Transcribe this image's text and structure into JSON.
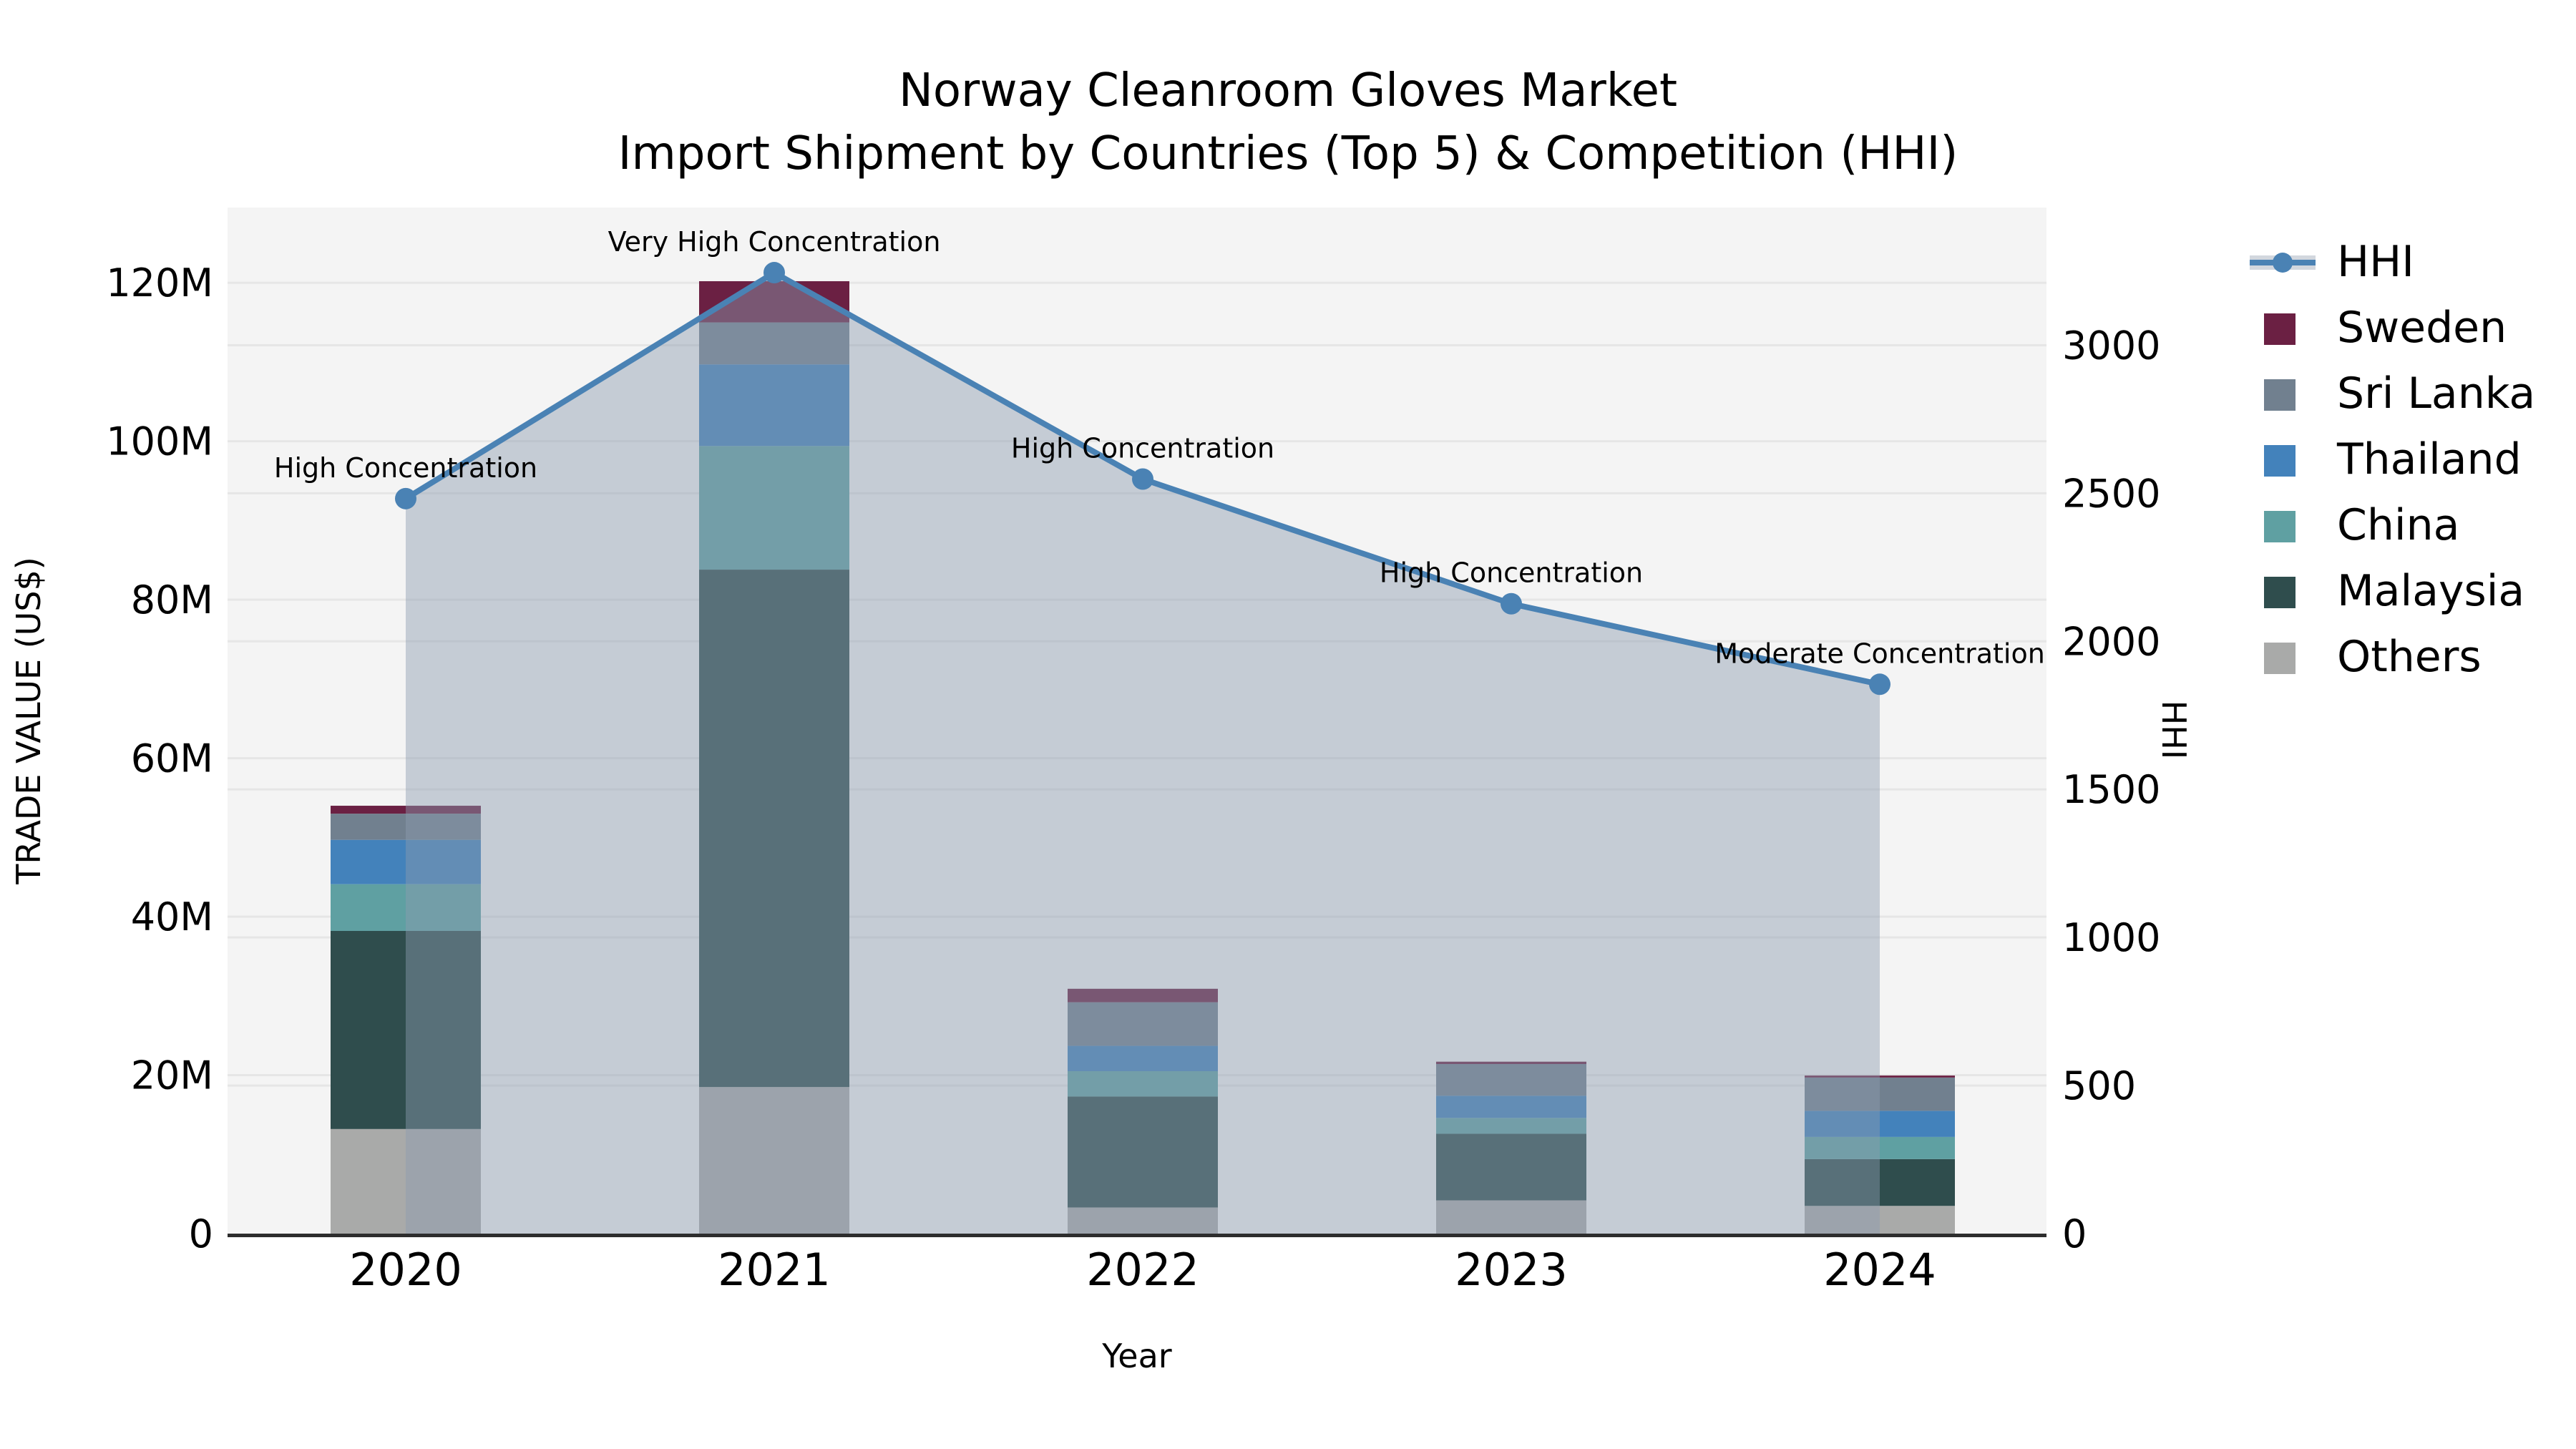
{
  "title": {
    "line1": "Norway Cleanroom Gloves Market",
    "line2": "Import Shipment by Countries (Top 5) & Competition (HHI)"
  },
  "axes": {
    "x_label": "Year",
    "y_left_label": "TRADE VALUE (US$)",
    "y_right_label": "HHI",
    "x_tick_labels": [
      "2020",
      "2021",
      "2022",
      "2023",
      "2024"
    ],
    "y_left_tick_labels": [
      "0",
      "20M",
      "40M",
      "60M",
      "80M",
      "100M",
      "120M"
    ],
    "y_right_tick_labels": [
      "0",
      "500",
      "1000",
      "1500",
      "2000",
      "2500",
      "3000"
    ]
  },
  "legend": {
    "items": [
      {
        "label": "HHI",
        "type": "line",
        "color": "#4a82b4",
        "band_color": "#d2d7de"
      },
      {
        "label": "Sweden",
        "type": "patch",
        "color": "#6b2043"
      },
      {
        "label": "Sri Lanka",
        "type": "patch",
        "color": "#71808f"
      },
      {
        "label": "Thailand",
        "type": "patch",
        "color": "#4382bb"
      },
      {
        "label": "China",
        "type": "patch",
        "color": "#5fa0a2"
      },
      {
        "label": "Malaysia",
        "type": "patch",
        "color": "#2f4d4d"
      },
      {
        "label": "Others",
        "type": "patch",
        "color": "#a9aaa9"
      }
    ]
  },
  "chart_data": {
    "type": "bar",
    "subtype": "stacked-bars-with-dual-axis-line",
    "title": "Norway Cleanroom Gloves Market — Import Shipment by Countries (Top 5) & Competition (HHI)",
    "xlabel": "Year",
    "ylabel_left": "TRADE VALUE (US$)",
    "ylabel_right": "HHI",
    "categories": [
      "2020",
      "2021",
      "2022",
      "2023",
      "2024"
    ],
    "unit_left": "million US$",
    "stack_order_bottom_to_top": [
      "Others",
      "Malaysia",
      "China",
      "Thailand",
      "Sri Lanka",
      "Sweden"
    ],
    "series": [
      {
        "name": "Others",
        "color": "#a9aaa9",
        "values": [
          13.2,
          18.5,
          3.3,
          4.2,
          3.5
        ]
      },
      {
        "name": "Malaysia",
        "color": "#2f4d4d",
        "values": [
          25.0,
          65.3,
          14.0,
          8.4,
          5.9
        ]
      },
      {
        "name": "China",
        "color": "#5fa0a2",
        "values": [
          5.9,
          15.6,
          3.2,
          2.0,
          2.8
        ]
      },
      {
        "name": "Thailand",
        "color": "#4382bb",
        "values": [
          5.6,
          10.3,
          3.2,
          2.8,
          3.3
        ]
      },
      {
        "name": "Sri Lanka",
        "color": "#71808f",
        "values": [
          3.3,
          5.3,
          5.5,
          4.0,
          4.2
        ]
      },
      {
        "name": "Sweden",
        "color": "#6b2043",
        "values": [
          1.0,
          5.2,
          1.7,
          0.3,
          0.25
        ]
      }
    ],
    "bar_totals_approx_M": [
      54.0,
      120.2,
      30.9,
      21.7,
      20.0
    ],
    "hhi_line": {
      "name": "HHI",
      "color": "#4a82b4",
      "values": [
        2482,
        3245,
        2548,
        2127,
        1855
      ],
      "annotations": [
        "High Concentration",
        "Very High Concentration",
        "High Concentration",
        "High Concentration",
        "Moderate Concentration"
      ],
      "area_fill_color": "#8c9baf",
      "area_fill_opacity": 0.45
    },
    "ylim_left_M": [
      0,
      129.5
    ],
    "ylim_right": [
      0,
      3465
    ],
    "y_left_tick_values_M": [
      0,
      20,
      40,
      60,
      80,
      100,
      120
    ],
    "y_right_tick_values": [
      0,
      500,
      1000,
      1500,
      2000,
      2500,
      3000
    ],
    "grid": true,
    "legend_position": "right",
    "plot_background": "#f4f4f4",
    "grid_color": "#e6e6e6",
    "axis_line_color": "#2d2d2d"
  }
}
